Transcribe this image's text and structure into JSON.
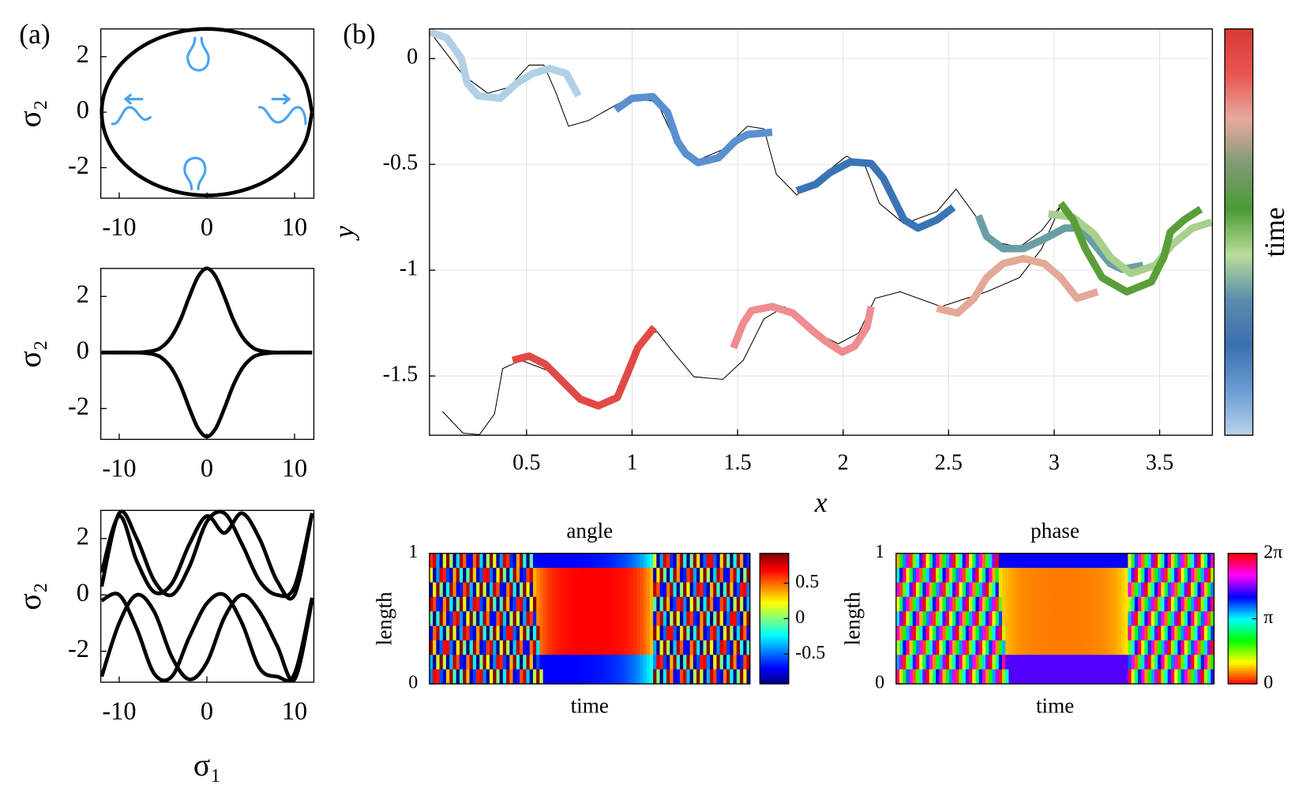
{
  "chart_data": [
    {
      "type": "line",
      "panel_label": "(a)",
      "ylabel": "σ₂",
      "xlim": [
        -12.1,
        12.2
      ],
      "ylim": [
        -3.1,
        3.0
      ],
      "xticks": [
        -10,
        0,
        10
      ],
      "yticks": [
        -2,
        0,
        2
      ],
      "series": [
        {
          "color": "#000000",
          "line_width": 4.5,
          "x": [
            12,
            11.09,
            8.49,
            4.59,
            0,
            -4.59,
            -8.49,
            -11.09,
            -12,
            -11.09,
            -8.49,
            -4.59,
            0,
            4.59,
            8.49,
            11.09,
            12
          ],
          "values": [
            0,
            1.15,
            2.12,
            2.77,
            3,
            2.77,
            2.12,
            1.15,
            0,
            -1.15,
            -2.12,
            -2.77,
            -3,
            -2.77,
            -2.12,
            -1.15,
            0
          ]
        }
      ]
    },
    {
      "type": "line",
      "ylabel": "σ₂",
      "xlim": [
        -12.1,
        12.2
      ],
      "ylim": [
        -3.1,
        3.0
      ],
      "xticks": [
        -10,
        0,
        10
      ],
      "yticks": [
        -2,
        0,
        2
      ],
      "series": [
        {
          "color": "#000000",
          "line_width": 4.5,
          "x": [
            -12,
            -8,
            -6,
            -5,
            -4,
            -3,
            -2,
            -1,
            0,
            1,
            2,
            3,
            4,
            5,
            6,
            8,
            12
          ],
          "values": [
            0,
            0,
            0.07,
            0.23,
            0.58,
            1.18,
            1.99,
            2.71,
            3,
            2.71,
            1.99,
            1.18,
            0.58,
            0.23,
            0.07,
            0,
            0
          ]
        },
        {
          "color": "#000000",
          "line_width": 4.5,
          "x": [
            -12,
            -8,
            -6,
            -5,
            -4,
            -3,
            -2,
            -1,
            0,
            1,
            2,
            3,
            4,
            5,
            6,
            8,
            12
          ],
          "values": [
            0,
            0,
            -0.07,
            -0.23,
            -0.58,
            -1.18,
            -1.99,
            -2.71,
            -3,
            -2.71,
            -1.99,
            -1.18,
            -0.58,
            -0.23,
            -0.07,
            0,
            0
          ]
        }
      ]
    },
    {
      "type": "line",
      "xlabel": "σ₁",
      "ylabel": "σ₂",
      "xlim": [
        -12.1,
        12.2
      ],
      "ylim": [
        -3.1,
        3.0
      ],
      "xticks": [
        -10,
        0,
        10
      ],
      "yticks": [
        -2,
        0,
        2
      ],
      "series": [
        {
          "color": "#000000",
          "line_width": 4.5,
          "x": [
            -12,
            -10,
            -8,
            -6,
            -4,
            -2,
            0,
            2,
            4,
            6,
            8,
            10,
            12
          ],
          "values": [
            0.3,
            2.9,
            2.0,
            0.5,
            0.0,
            1.0,
            2.6,
            2.9,
            1.8,
            0.5,
            0,
            0.3,
            2.9
          ]
        },
        {
          "color": "#000000",
          "line_width": 4.5,
          "x": [
            -12,
            -10,
            -8,
            -6,
            -4,
            -2,
            0,
            2,
            4,
            6,
            8,
            10,
            12
          ],
          "values": [
            0.8,
            2.8,
            1.2,
            0.1,
            0.4,
            1.8,
            2.8,
            2.2,
            2.9,
            2.0,
            0.5,
            0.0,
            2.9
          ]
        },
        {
          "color": "#000000",
          "line_width": 4.5,
          "x": [
            -12,
            -10,
            -8,
            -6,
            -4,
            -2,
            0,
            2,
            4,
            6,
            8,
            10,
            12
          ],
          "values": [
            -2.9,
            -1.0,
            0,
            -0.6,
            -2.2,
            -3.0,
            -2.4,
            -0.8,
            0,
            -0.6,
            -1.8,
            -3.0,
            -0.2
          ]
        },
        {
          "color": "#000000",
          "line_width": 4.5,
          "x": [
            -12,
            -10,
            -8,
            -6,
            -4,
            -2,
            0,
            2,
            4,
            6,
            8,
            10,
            12
          ],
          "values": [
            -0.2,
            0,
            -1.2,
            -2.8,
            -2.9,
            -1.5,
            -0.3,
            0,
            -1.0,
            -2.6,
            -2.9,
            -2.8,
            -0.1
          ]
        }
      ]
    },
    {
      "type": "line",
      "panel_label": "(b)",
      "xlabel": "x",
      "ylabel": "y",
      "xlim": [
        0.04,
        3.75
      ],
      "ylim": [
        -1.78,
        0.14
      ],
      "xticks": [
        0.5,
        1,
        1.5,
        2,
        2.5,
        3,
        3.5
      ],
      "yticks": [
        -1.5,
        -1,
        -0.5,
        0
      ],
      "grid": true,
      "colorbar": {
        "label": "time",
        "colors": [
          "#b7d3e9",
          "#6a9bd1",
          "#3b70b0",
          "#5b8cad",
          "#b9dd9a",
          "#4b9b35",
          "#7f9a75",
          "#e8aaa0",
          "#e8554f",
          "#d93a36"
        ]
      },
      "series": [
        {
          "color": "#000000",
          "line_width": 1,
          "x": [
            0.043,
            0.199,
            0.316,
            0.414,
            0.512,
            0.582,
            0.637,
            0.699,
            0.793,
            0.98,
            1.117,
            1.195,
            1.293,
            1.43,
            1.547,
            1.625,
            1.684,
            1.781,
            1.898,
            2.016,
            2.105,
            2.172,
            2.289,
            2.445,
            2.535,
            2.613,
            2.719,
            2.836,
            2.941,
            3.031,
            2.941,
            2.836,
            2.68,
            2.465,
            2.27,
            2.152,
            2.074,
            1.977,
            1.859,
            1.723,
            1.625,
            1.527,
            1.43,
            1.293,
            1.195,
            1.117,
            1.039,
            0.973,
            0.883,
            0.746,
            0.609,
            0.473,
            0.387,
            0.348,
            0.277,
            0.199,
            0.102
          ],
          "values": [
            0.125,
            -0.078,
            -0.164,
            -0.137,
            -0.031,
            -0.031,
            -0.156,
            -0.32,
            -0.293,
            -0.188,
            -0.203,
            -0.371,
            -0.488,
            -0.43,
            -0.32,
            -0.332,
            -0.547,
            -0.645,
            -0.555,
            -0.461,
            -0.508,
            -0.684,
            -0.781,
            -0.723,
            -0.617,
            -0.723,
            -0.867,
            -0.891,
            -0.813,
            -0.695,
            -0.898,
            -1.035,
            -1.102,
            -1.172,
            -1.102,
            -1.133,
            -1.297,
            -1.348,
            -1.289,
            -1.172,
            -1.23,
            -1.426,
            -1.516,
            -1.504,
            -1.387,
            -1.289,
            -1.328,
            -1.523,
            -1.633,
            -1.621,
            -1.477,
            -1.426,
            -1.465,
            -1.68,
            -1.777,
            -1.77,
            -1.668
          ]
        },
        {
          "color": "#b1d0e6",
          "line_width": 9,
          "x": [
            0.043,
            0.121,
            0.191,
            0.219,
            0.27,
            0.375,
            0.453,
            0.531,
            0.609,
            0.688,
            0.746
          ],
          "values": [
            0.125,
            0.098,
            0,
            -0.117,
            -0.176,
            -0.188,
            -0.117,
            -0.07,
            -0.047,
            -0.07,
            -0.176
          ]
        },
        {
          "color": "#5b8fcf",
          "line_width": 9,
          "x": [
            0.922,
            1,
            1.098,
            1.168,
            1.215,
            1.254,
            1.313,
            1.41,
            1.488,
            1.547,
            1.664
          ],
          "values": [
            -0.242,
            -0.188,
            -0.18,
            -0.254,
            -0.391,
            -0.449,
            -0.492,
            -0.469,
            -0.391,
            -0.359,
            -0.348
          ]
        },
        {
          "color": "#3a74b5",
          "line_width": 9,
          "x": [
            1.781,
            1.871,
            1.938,
            2.035,
            2.133,
            2.191,
            2.25,
            2.289,
            2.355,
            2.445,
            2.523
          ],
          "values": [
            -0.625,
            -0.594,
            -0.539,
            -0.488,
            -0.496,
            -0.566,
            -0.684,
            -0.762,
            -0.801,
            -0.762,
            -0.703
          ]
        },
        {
          "color": "#6a9ea5",
          "line_width": 9,
          "x": [
            2.641,
            2.68,
            2.758,
            2.855,
            2.953,
            3.051,
            3.129,
            3.207,
            3.266,
            3.324,
            3.422
          ],
          "values": [
            -0.742,
            -0.84,
            -0.898,
            -0.898,
            -0.852,
            -0.801,
            -0.801,
            -0.898,
            -0.969,
            -0.996,
            -0.977
          ]
        },
        {
          "color": "#a8d08d",
          "line_width": 9,
          "x": [
            2.973,
            3.09,
            3.188,
            3.266,
            3.363,
            3.48,
            3.559,
            3.656,
            3.746
          ],
          "values": [
            -0.734,
            -0.75,
            -0.828,
            -0.938,
            -1.016,
            -0.977,
            -0.879,
            -0.801,
            -0.773
          ]
        },
        {
          "color": "#5a9e3a",
          "line_width": 9,
          "x": [
            3.031,
            3.09,
            3.148,
            3.227,
            3.344,
            3.461,
            3.52,
            3.551,
            3.617,
            3.695
          ],
          "values": [
            -0.684,
            -0.762,
            -0.898,
            -1.035,
            -1.102,
            -1.055,
            -0.938,
            -0.82,
            -0.762,
            -0.711
          ]
        },
        {
          "color": "#e3a898",
          "line_width": 9,
          "x": [
            2.445,
            2.543,
            2.621,
            2.68,
            2.758,
            2.855,
            2.953,
            3.031,
            3.109,
            3.207
          ],
          "values": [
            -1.18,
            -1.203,
            -1.133,
            -1.035,
            -0.969,
            -0.945,
            -0.969,
            -1.035,
            -1.133,
            -1.102
          ]
        },
        {
          "color": "#ee8c90",
          "line_width": 9,
          "x": [
            1.48,
            1.527,
            1.566,
            1.664,
            1.762,
            1.859,
            1.918,
            1.996,
            2.055,
            2.113,
            2.133
          ],
          "values": [
            -1.367,
            -1.25,
            -1.191,
            -1.172,
            -1.203,
            -1.289,
            -1.336,
            -1.387,
            -1.359,
            -1.27,
            -1.172
          ]
        },
        {
          "color": "#e04a45",
          "line_width": 9,
          "x": [
            0.434,
            0.512,
            0.59,
            0.668,
            0.754,
            0.84,
            0.93,
            0.98,
            1.027,
            1.105
          ],
          "values": [
            -1.426,
            -1.406,
            -1.445,
            -1.523,
            -1.609,
            -1.641,
            -1.602,
            -1.484,
            -1.367,
            -1.27
          ]
        }
      ]
    },
    {
      "type": "heatmap",
      "title": "angle",
      "xlabel": "time",
      "ylabel": "length",
      "ylim": [
        0,
        1
      ],
      "yticks": [
        0,
        1
      ],
      "colorbar": {
        "colormap": "jet",
        "clim": [
          -0.92,
          0.92
        ],
        "ticks": [
          -0.5,
          0,
          0.5
        ]
      }
    },
    {
      "type": "heatmap",
      "title": "phase",
      "xlabel": "time",
      "ylabel": "length",
      "ylim": [
        0,
        1
      ],
      "yticks": [
        0,
        1
      ],
      "colorbar": {
        "colormap": "hsv",
        "clim": [
          0,
          6.3
        ],
        "ticks": [
          0,
          {
            "value": 3.1416,
            "label": "π"
          },
          {
            "value": 6.2832,
            "label": "2π"
          }
        ]
      }
    }
  ]
}
